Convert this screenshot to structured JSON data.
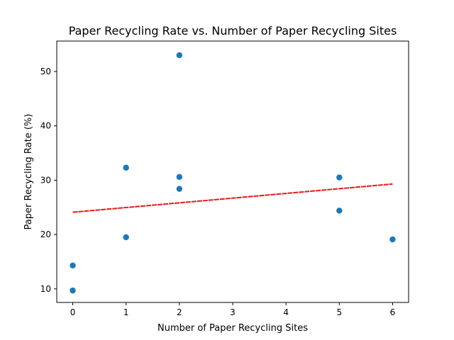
{
  "chart_data": {
    "type": "scatter",
    "title": "Paper Recycling Rate vs. Number of Paper Recycling Sites",
    "xlabel": "Number of Paper Recycling Sites",
    "ylabel": "Paper Recycling Rate (%)",
    "xlim": [
      -0.3,
      6.3
    ],
    "ylim": [
      7.5,
      55.6
    ],
    "xticks": [
      0,
      1,
      2,
      3,
      4,
      5,
      6
    ],
    "yticks": [
      10,
      20,
      30,
      40,
      50
    ],
    "grid": false,
    "series": [
      {
        "color": "#1f77b4",
        "points": [
          {
            "x": 0,
            "y": 14.3
          },
          {
            "x": 0,
            "y": 9.7
          },
          {
            "x": 1,
            "y": 32.3
          },
          {
            "x": 1,
            "y": 19.5
          },
          {
            "x": 2,
            "y": 53.0
          },
          {
            "x": 2,
            "y": 30.6
          },
          {
            "x": 2,
            "y": 28.4
          },
          {
            "x": 5,
            "y": 30.5
          },
          {
            "x": 5,
            "y": 24.4
          },
          {
            "x": 6,
            "y": 19.1
          }
        ]
      }
    ],
    "trendline": {
      "color": "#e41a1c",
      "style": "dashed",
      "x": [
        0,
        6
      ],
      "y": [
        24.1,
        29.3
      ]
    }
  }
}
